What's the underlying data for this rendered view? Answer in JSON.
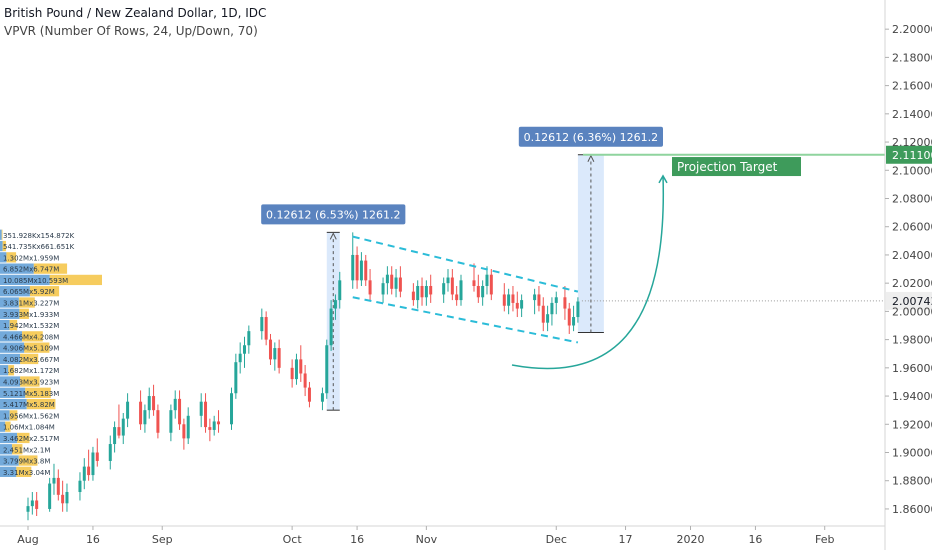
{
  "header": {
    "title": "British Pound / New Zealand Dollar, 1D, IDC",
    "indicator": "VPVR (Number Of Rows, 24, Up/Down, 70)"
  },
  "colors": {
    "up": "#26a69a",
    "down": "#ef5350",
    "vp_up": "#5b9bd5",
    "vp_down": "#f5c342",
    "measure_fill": "#cfe2f9",
    "measure_label": "#5a83bf",
    "channel": "#2bbcd8",
    "arrow": "#26a69a",
    "target_line": "#8fd49e",
    "target_tag": "#3e9b5b",
    "price_tag": "#eeeeee"
  },
  "chart_data": {
    "type": "candlestick",
    "title": "British Pound / New Zealand Dollar, 1D, IDC",
    "ylim": [
      1.855,
      2.215
    ],
    "y_ticks": [
      "2.20000",
      "2.18000",
      "2.16000",
      "2.14000",
      "2.12000",
      "2.10000",
      "2.08000",
      "2.06000",
      "2.04000",
      "2.02000",
      "2.00000",
      "1.98000",
      "1.96000",
      "1.94000",
      "1.92000",
      "1.90000",
      "1.88000",
      "1.86000"
    ],
    "x_ticks": [
      {
        "day": 0,
        "label": "Aug"
      },
      {
        "day": 15,
        "label": "16"
      },
      {
        "day": 31,
        "label": "Sep"
      },
      {
        "day": 61,
        "label": "Oct"
      },
      {
        "day": 76,
        "label": "16"
      },
      {
        "day": 92,
        "label": "Nov"
      },
      {
        "day": 122,
        "label": "Dec"
      },
      {
        "day": 138,
        "label": "17"
      },
      {
        "day": 153,
        "label": "2020"
      },
      {
        "day": 168,
        "label": "16"
      },
      {
        "day": 184,
        "label": "Feb"
      }
    ],
    "last_price": "2.00743",
    "target_price": "2.11100",
    "target_label": "Projection Target",
    "measure_labels": [
      "0.12612 (6.53%) 1261.2",
      "0.12612 (6.36%) 1261.2"
    ],
    "measures": [
      {
        "day_start": 69,
        "day_end": 72,
        "low": 1.93,
        "high": 2.056
      },
      {
        "day_start": 127,
        "day_end": 133,
        "low": 1.985,
        "high": 2.111
      }
    ],
    "channel": {
      "upper": [
        [
          75,
          2.053
        ],
        [
          127,
          2.014
        ]
      ],
      "lower": [
        [
          75,
          2.01
        ],
        [
          127,
          1.978
        ]
      ]
    },
    "volume_profile": {
      "labels": [
        "351.928K",
        "541.735K",
        "1.302M",
        "6.852M",
        "10.085M",
        "6.065M",
        "3.831M",
        "3.933M",
        "1.942M",
        "4.466M",
        "4.906M",
        "4.082M",
        "1.682M",
        "4.093M",
        "5.121M",
        "5.417M",
        "1.956M",
        "1.06M",
        "3.462M",
        "2.451M",
        "3.799M",
        "3.31M"
      ],
      "rows": [
        {
          "price": 2.0543,
          "up": 0.351928,
          "down": 0.154872,
          "text": "351.928Kx154.872K"
        },
        {
          "price": 2.0463,
          "up": 0.541735,
          "down": 0.661651,
          "text": "541.735Kx661.651K"
        },
        {
          "price": 2.0383,
          "up": 1.302,
          "down": 1.959,
          "text": "1.302Mx1.959M"
        },
        {
          "price": 2.0303,
          "up": 6.852,
          "down": 6.747,
          "text": "6.852Mx6.747M"
        },
        {
          "price": 2.0223,
          "up": 10.085,
          "down": 10.593,
          "text": "10.085Mx10.593M"
        },
        {
          "price": 2.0143,
          "up": 6.065,
          "down": 5.92,
          "text": "6.065Mx5.92M"
        },
        {
          "price": 2.0063,
          "up": 3.831,
          "down": 3.227,
          "text": "3.831Mx3.227M"
        },
        {
          "price": 1.9983,
          "up": 3.933,
          "down": 1.933,
          "text": "3.933Mx1.933M"
        },
        {
          "price": 1.9903,
          "up": 1.942,
          "down": 1.532,
          "text": "1.942Mx1.532M"
        },
        {
          "price": 1.9823,
          "up": 4.466,
          "down": 4.208,
          "text": "4.466Mx4.208M"
        },
        {
          "price": 1.9743,
          "up": 4.906,
          "down": 5.109,
          "text": "4.906Mx5.109M"
        },
        {
          "price": 1.9663,
          "up": 4.082,
          "down": 3.667,
          "text": "4.082Mx3.667M"
        },
        {
          "price": 1.9583,
          "up": 1.682,
          "down": 1.172,
          "text": "1.682Mx1.172M"
        },
        {
          "price": 1.9503,
          "up": 4.093,
          "down": 3.923,
          "text": "4.093Mx3.923M"
        },
        {
          "price": 1.9423,
          "up": 5.121,
          "down": 5.183,
          "text": "5.121Mx5.183M"
        },
        {
          "price": 1.9343,
          "up": 5.417,
          "down": 5.82,
          "text": "5.417Mx5.82M"
        },
        {
          "price": 1.9263,
          "up": 1.956,
          "down": 1.562,
          "text": "1.956Mx1.562M"
        },
        {
          "price": 1.9183,
          "up": 1.06,
          "down": 1.084,
          "text": "1.06Mx1.084M"
        },
        {
          "price": 1.9103,
          "up": 3.462,
          "down": 2.517,
          "text": "3.462Mx2.517M"
        },
        {
          "price": 1.9023,
          "up": 2.451,
          "down": 2.1,
          "text": "2.451Mx2.1M"
        },
        {
          "price": 1.8943,
          "up": 3.799,
          "down": 3.8,
          "text": "3.799Mx3.8M"
        },
        {
          "price": 1.8863,
          "up": 3.31,
          "down": 3.04,
          "text": "3.31Mx3.04M"
        }
      ]
    },
    "candles": [
      {
        "d": 0,
        "o": 1.858,
        "h": 1.868,
        "l": 1.852,
        "c": 1.862
      },
      {
        "d": 1,
        "o": 1.862,
        "h": 1.872,
        "l": 1.856,
        "c": 1.866
      },
      {
        "d": 2,
        "o": 1.866,
        "h": 1.872,
        "l": 1.855,
        "c": 1.86
      },
      {
        "d": 5,
        "o": 1.86,
        "h": 1.882,
        "l": 1.858,
        "c": 1.878
      },
      {
        "d": 6,
        "o": 1.878,
        "h": 1.892,
        "l": 1.87,
        "c": 1.882
      },
      {
        "d": 7,
        "o": 1.882,
        "h": 1.888,
        "l": 1.866,
        "c": 1.87
      },
      {
        "d": 8,
        "o": 1.87,
        "h": 1.88,
        "l": 1.858,
        "c": 1.864
      },
      {
        "d": 9,
        "o": 1.864,
        "h": 1.878,
        "l": 1.858,
        "c": 1.872
      },
      {
        "d": 12,
        "o": 1.872,
        "h": 1.886,
        "l": 1.866,
        "c": 1.88
      },
      {
        "d": 13,
        "o": 1.88,
        "h": 1.896,
        "l": 1.874,
        "c": 1.89
      },
      {
        "d": 14,
        "o": 1.89,
        "h": 1.902,
        "l": 1.88,
        "c": 1.884
      },
      {
        "d": 15,
        "o": 1.884,
        "h": 1.904,
        "l": 1.88,
        "c": 1.9
      },
      {
        "d": 16,
        "o": 1.9,
        "h": 1.91,
        "l": 1.89,
        "c": 1.894
      },
      {
        "d": 19,
        "o": 1.894,
        "h": 1.912,
        "l": 1.888,
        "c": 1.906
      },
      {
        "d": 20,
        "o": 1.906,
        "h": 1.922,
        "l": 1.9,
        "c": 1.918
      },
      {
        "d": 21,
        "o": 1.918,
        "h": 1.934,
        "l": 1.91,
        "c": 1.912
      },
      {
        "d": 22,
        "o": 1.912,
        "h": 1.928,
        "l": 1.906,
        "c": 1.924
      },
      {
        "d": 23,
        "o": 1.924,
        "h": 1.942,
        "l": 1.918,
        "c": 1.936
      },
      {
        "d": 26,
        "o": 1.936,
        "h": 1.944,
        "l": 1.916,
        "c": 1.92
      },
      {
        "d": 27,
        "o": 1.92,
        "h": 1.934,
        "l": 1.914,
        "c": 1.93
      },
      {
        "d": 28,
        "o": 1.93,
        "h": 1.946,
        "l": 1.924,
        "c": 1.94
      },
      {
        "d": 29,
        "o": 1.94,
        "h": 1.948,
        "l": 1.926,
        "c": 1.93
      },
      {
        "d": 30,
        "o": 1.93,
        "h": 1.934,
        "l": 1.91,
        "c": 1.914
      },
      {
        "d": 33,
        "o": 1.914,
        "h": 1.934,
        "l": 1.908,
        "c": 1.93
      },
      {
        "d": 34,
        "o": 1.93,
        "h": 1.944,
        "l": 1.924,
        "c": 1.938
      },
      {
        "d": 35,
        "o": 1.938,
        "h": 1.944,
        "l": 1.916,
        "c": 1.92
      },
      {
        "d": 36,
        "o": 1.92,
        "h": 1.924,
        "l": 1.902,
        "c": 1.91
      },
      {
        "d": 37,
        "o": 1.91,
        "h": 1.932,
        "l": 1.906,
        "c": 1.926
      },
      {
        "d": 40,
        "o": 1.926,
        "h": 1.942,
        "l": 1.918,
        "c": 1.936
      },
      {
        "d": 41,
        "o": 1.936,
        "h": 1.942,
        "l": 1.914,
        "c": 1.918
      },
      {
        "d": 42,
        "o": 1.918,
        "h": 1.924,
        "l": 1.908,
        "c": 1.916
      },
      {
        "d": 43,
        "o": 1.916,
        "h": 1.926,
        "l": 1.912,
        "c": 1.922
      },
      {
        "d": 44,
        "o": 1.922,
        "h": 1.93,
        "l": 1.914,
        "c": 1.92
      },
      {
        "d": 47,
        "o": 1.92,
        "h": 1.946,
        "l": 1.916,
        "c": 1.942
      },
      {
        "d": 48,
        "o": 1.942,
        "h": 1.97,
        "l": 1.938,
        "c": 1.964
      },
      {
        "d": 49,
        "o": 1.964,
        "h": 1.978,
        "l": 1.956,
        "c": 1.97
      },
      {
        "d": 50,
        "o": 1.97,
        "h": 1.982,
        "l": 1.96,
        "c": 1.976
      },
      {
        "d": 51,
        "o": 1.976,
        "h": 1.99,
        "l": 1.97,
        "c": 1.986
      },
      {
        "d": 54,
        "o": 1.986,
        "h": 2.002,
        "l": 1.98,
        "c": 1.996
      },
      {
        "d": 55,
        "o": 1.996,
        "h": 2.0,
        "l": 1.976,
        "c": 1.98
      },
      {
        "d": 56,
        "o": 1.98,
        "h": 1.984,
        "l": 1.962,
        "c": 1.966
      },
      {
        "d": 57,
        "o": 1.966,
        "h": 1.978,
        "l": 1.958,
        "c": 1.974
      },
      {
        "d": 58,
        "o": 1.974,
        "h": 1.98,
        "l": 1.956,
        "c": 1.96
      },
      {
        "d": 61,
        "o": 1.96,
        "h": 1.966,
        "l": 1.946,
        "c": 1.952
      },
      {
        "d": 62,
        "o": 1.952,
        "h": 1.97,
        "l": 1.948,
        "c": 1.966
      },
      {
        "d": 63,
        "o": 1.966,
        "h": 1.976,
        "l": 1.95,
        "c": 1.956
      },
      {
        "d": 64,
        "o": 1.956,
        "h": 1.962,
        "l": 1.94,
        "c": 1.946
      },
      {
        "d": 65,
        "o": 1.946,
        "h": 1.95,
        "l": 1.932,
        "c": 1.936
      },
      {
        "d": 68,
        "o": 1.936,
        "h": 1.946,
        "l": 1.93,
        "c": 1.942
      },
      {
        "d": 69,
        "o": 1.942,
        "h": 1.98,
        "l": 1.938,
        "c": 1.976
      },
      {
        "d": 70,
        "o": 1.976,
        "h": 2.008,
        "l": 1.972,
        "c": 2.002
      },
      {
        "d": 71,
        "o": 2.002,
        "h": 2.012,
        "l": 1.994,
        "c": 2.008
      },
      {
        "d": 72,
        "o": 2.008,
        "h": 2.028,
        "l": 2.002,
        "c": 2.022
      },
      {
        "d": 75,
        "o": 2.022,
        "h": 2.056,
        "l": 2.016,
        "c": 2.04
      },
      {
        "d": 76,
        "o": 2.04,
        "h": 2.046,
        "l": 2.016,
        "c": 2.022
      },
      {
        "d": 77,
        "o": 2.022,
        "h": 2.042,
        "l": 2.018,
        "c": 2.036
      },
      {
        "d": 78,
        "o": 2.036,
        "h": 2.04,
        "l": 2.018,
        "c": 2.022
      },
      {
        "d": 79,
        "o": 2.022,
        "h": 2.03,
        "l": 2.008,
        "c": 2.012
      },
      {
        "d": 82,
        "o": 2.012,
        "h": 2.024,
        "l": 2.006,
        "c": 2.02
      },
      {
        "d": 83,
        "o": 2.02,
        "h": 2.032,
        "l": 2.012,
        "c": 2.026
      },
      {
        "d": 84,
        "o": 2.026,
        "h": 2.032,
        "l": 2.012,
        "c": 2.016
      },
      {
        "d": 85,
        "o": 2.016,
        "h": 2.03,
        "l": 2.01,
        "c": 2.024
      },
      {
        "d": 86,
        "o": 2.024,
        "h": 2.032,
        "l": 2.01,
        "c": 2.014
      },
      {
        "d": 89,
        "o": 2.014,
        "h": 2.02,
        "l": 2.004,
        "c": 2.008
      },
      {
        "d": 90,
        "o": 2.008,
        "h": 2.022,
        "l": 2.002,
        "c": 2.018
      },
      {
        "d": 91,
        "o": 2.018,
        "h": 2.024,
        "l": 2.004,
        "c": 2.01
      },
      {
        "d": 92,
        "o": 2.01,
        "h": 2.022,
        "l": 2.004,
        "c": 2.018
      },
      {
        "d": 93,
        "o": 2.018,
        "h": 2.026,
        "l": 2.006,
        "c": 2.012
      },
      {
        "d": 96,
        "o": 2.012,
        "h": 2.024,
        "l": 2.006,
        "c": 2.02
      },
      {
        "d": 97,
        "o": 2.02,
        "h": 2.03,
        "l": 2.014,
        "c": 2.024
      },
      {
        "d": 98,
        "o": 2.024,
        "h": 2.03,
        "l": 2.008,
        "c": 2.012
      },
      {
        "d": 99,
        "o": 2.012,
        "h": 2.018,
        "l": 2.004,
        "c": 2.008
      },
      {
        "d": 100,
        "o": 2.008,
        "h": 2.026,
        "l": 2.004,
        "c": 2.022
      },
      {
        "d": 103,
        "o": 2.022,
        "h": 2.034,
        "l": 2.014,
        "c": 2.018
      },
      {
        "d": 104,
        "o": 2.018,
        "h": 2.026,
        "l": 2.006,
        "c": 2.01
      },
      {
        "d": 105,
        "o": 2.01,
        "h": 2.022,
        "l": 2.004,
        "c": 2.018
      },
      {
        "d": 106,
        "o": 2.018,
        "h": 2.032,
        "l": 2.012,
        "c": 2.026
      },
      {
        "d": 107,
        "o": 2.026,
        "h": 2.03,
        "l": 2.008,
        "c": 2.012
      },
      {
        "d": 110,
        "o": 2.012,
        "h": 2.02,
        "l": 2.0,
        "c": 2.004
      },
      {
        "d": 111,
        "o": 2.004,
        "h": 2.016,
        "l": 1.998,
        "c": 2.012
      },
      {
        "d": 112,
        "o": 2.012,
        "h": 2.018,
        "l": 2.0,
        "c": 2.006
      },
      {
        "d": 113,
        "o": 2.006,
        "h": 2.014,
        "l": 1.996,
        "c": 2.002
      },
      {
        "d": 114,
        "o": 2.002,
        "h": 2.012,
        "l": 1.996,
        "c": 2.008
      },
      {
        "d": 117,
        "o": 2.008,
        "h": 2.016,
        "l": 1.998,
        "c": 2.012
      },
      {
        "d": 118,
        "o": 2.012,
        "h": 2.018,
        "l": 2.0,
        "c": 2.004
      },
      {
        "d": 119,
        "o": 2.004,
        "h": 2.01,
        "l": 1.986,
        "c": 1.992
      },
      {
        "d": 120,
        "o": 1.992,
        "h": 2.004,
        "l": 1.986,
        "c": 1.998
      },
      {
        "d": 121,
        "o": 1.998,
        "h": 2.01,
        "l": 1.99,
        "c": 2.006
      },
      {
        "d": 122,
        "o": 2.006,
        "h": 2.014,
        "l": 1.998,
        "c": 2.01
      },
      {
        "d": 124,
        "o": 2.01,
        "h": 2.018,
        "l": 1.994,
        "c": 2.002
      },
      {
        "d": 125,
        "o": 2.002,
        "h": 2.006,
        "l": 1.984,
        "c": 1.99
      },
      {
        "d": 126,
        "o": 1.99,
        "h": 2.004,
        "l": 1.986,
        "c": 1.996
      },
      {
        "d": 127,
        "o": 1.996,
        "h": 2.01,
        "l": 1.992,
        "c": 2.007
      }
    ]
  }
}
